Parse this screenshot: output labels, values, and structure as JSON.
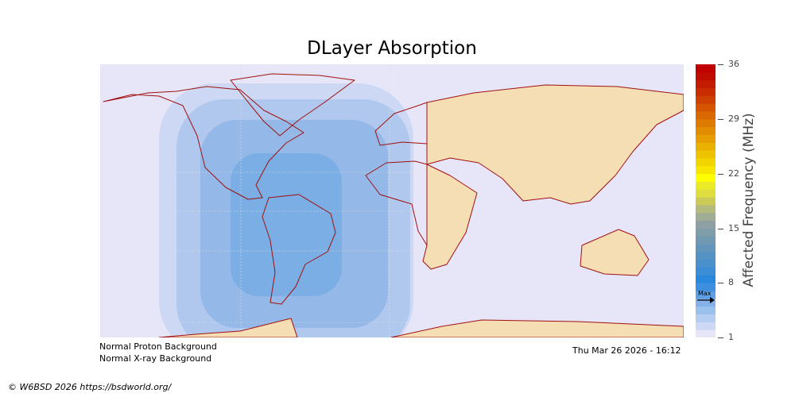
{
  "title": "DLayer Absorption",
  "colorbar": {
    "label": "Affected Frequency (MHz)",
    "range": [
      1,
      36
    ],
    "ticks": [
      "36",
      "29",
      "22",
      "15",
      "8",
      "1"
    ],
    "max_label": "Max",
    "max_value": 5.5,
    "colors": [
      "#e6e6f8",
      "#ccd8f4",
      "#b4cdf0",
      "#9cc0ec",
      "#84b2e8",
      "#5e9fe4",
      "#3f8fe0",
      "#2a88dc",
      "#3b8ed6",
      "#4a90cc",
      "#5592c4",
      "#6496bc",
      "#7299b2",
      "#809daa",
      "#8ea0a2",
      "#a0ad94",
      "#b4ba7c",
      "#cccb58",
      "#dede40",
      "#eaea28",
      "#ffff00",
      "#f8e600",
      "#f2d400",
      "#eec200",
      "#eab000",
      "#e69e00",
      "#e28c00",
      "#de7a00",
      "#da6800",
      "#d45400",
      "#ce4000",
      "#c82c00",
      "#c41c00",
      "#c00c00",
      "#c00000"
    ]
  },
  "map": {
    "background": "#e6e6f8",
    "absorption_colors": [
      "#ccd8f4",
      "#b0c8ee",
      "#94b8e8",
      "#7aaee4"
    ],
    "land_day_fill": "#f5deb3",
    "coastline": "#a01010"
  },
  "footer": {
    "proton": "Normal Proton Background",
    "xray": "Normal X-ray Background",
    "timestamp": "Thu Mar 26 2026 - 16:12",
    "copyright": "© W6BSD 2026 https://bsdworld.org/"
  }
}
